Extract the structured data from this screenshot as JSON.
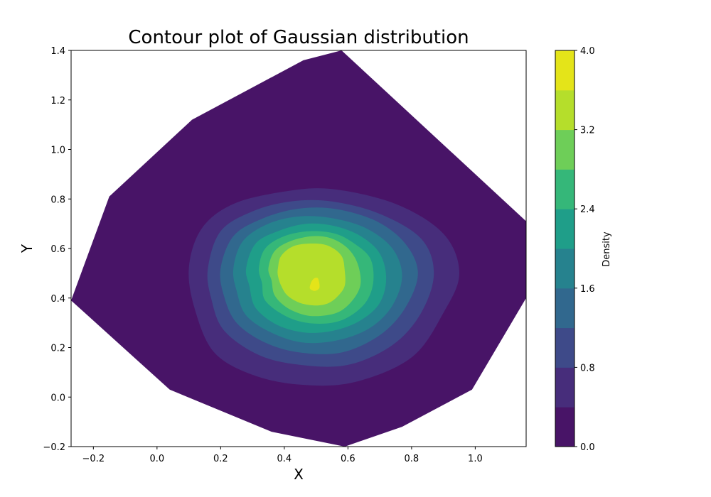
{
  "chart_data": {
    "type": "contour",
    "title": "Contour plot of Gaussian distribution",
    "xlabel": "X",
    "ylabel": "Y",
    "xlim": [
      -0.27,
      1.16
    ],
    "ylim": [
      -0.2,
      1.4
    ],
    "x_ticks": [
      -0.2,
      0.0,
      0.2,
      0.4,
      0.6,
      0.8,
      1.0
    ],
    "x_tick_labels": [
      "−0.2",
      "0.0",
      "0.2",
      "0.4",
      "0.6",
      "0.8",
      "1.0"
    ],
    "y_ticks": [
      -0.2,
      0.0,
      0.2,
      0.4,
      0.6,
      0.8,
      1.0,
      1.2,
      1.4
    ],
    "y_tick_labels": [
      "−0.2",
      "0.0",
      "0.2",
      "0.4",
      "0.6",
      "0.8",
      "1.0",
      "1.2",
      "1.4"
    ],
    "colormap": "viridis",
    "levels": [
      0.0,
      0.4,
      0.8,
      1.2,
      1.6,
      2.0,
      2.4,
      2.8,
      3.2,
      3.6,
      4.0
    ],
    "level_colors": [
      "#440154",
      "#472c7a",
      "#3b518b",
      "#2c718e",
      "#21908d",
      "#27ad81",
      "#5cc863",
      "#aadc32",
      "#fde725",
      "#fde725"
    ],
    "colorbar": {
      "label": "Density",
      "range": [
        0.0,
        4.0
      ],
      "ticks": [
        0.0,
        0.8,
        1.6,
        2.4,
        3.2,
        4.0
      ],
      "tick_labels": [
        "0.0",
        "0.8",
        "1.6",
        "2.4",
        "3.2",
        "4.0"
      ],
      "band_colors": [
        "#481467",
        "#472d7b",
        "#3e4a89",
        "#31688e",
        "#26828e",
        "#1f9e89",
        "#35b779",
        "#6ece58",
        "#b5de2b",
        "#e4e419"
      ]
    },
    "domain_hull": [
      [
        -0.27,
        0.39
      ],
      [
        -0.15,
        0.81
      ],
      [
        0.11,
        1.12
      ],
      [
        0.46,
        1.36
      ],
      [
        0.58,
        1.4
      ],
      [
        1.16,
        0.71
      ],
      [
        1.16,
        0.4
      ],
      [
        0.99,
        0.03
      ],
      [
        0.77,
        -0.12
      ],
      [
        0.59,
        -0.2
      ],
      [
        0.36,
        -0.14
      ],
      [
        0.04,
        0.03
      ]
    ],
    "peak": {
      "x": 0.49,
      "y": 0.46,
      "value": 3.7
    },
    "contours": [
      {
        "level": 0.4,
        "points": [
          [
            0.1,
            0.52
          ],
          [
            0.14,
            0.68
          ],
          [
            0.24,
            0.78
          ],
          [
            0.4,
            0.83
          ],
          [
            0.55,
            0.84
          ],
          [
            0.75,
            0.78
          ],
          [
            0.9,
            0.66
          ],
          [
            0.95,
            0.5
          ],
          [
            0.9,
            0.34
          ],
          [
            0.8,
            0.16
          ],
          [
            0.62,
            0.06
          ],
          [
            0.45,
            0.05
          ],
          [
            0.3,
            0.09
          ],
          [
            0.18,
            0.18
          ],
          [
            0.12,
            0.35
          ]
        ]
      },
      {
        "level": 0.8,
        "points": [
          [
            0.16,
            0.52
          ],
          [
            0.2,
            0.67
          ],
          [
            0.3,
            0.75
          ],
          [
            0.42,
            0.79
          ],
          [
            0.55,
            0.79
          ],
          [
            0.7,
            0.74
          ],
          [
            0.83,
            0.64
          ],
          [
            0.87,
            0.5
          ],
          [
            0.83,
            0.34
          ],
          [
            0.74,
            0.21
          ],
          [
            0.6,
            0.13
          ],
          [
            0.45,
            0.13
          ],
          [
            0.32,
            0.17
          ],
          [
            0.21,
            0.27
          ],
          [
            0.17,
            0.4
          ]
        ]
      },
      {
        "level": 1.2,
        "points": [
          [
            0.2,
            0.52
          ],
          [
            0.24,
            0.65
          ],
          [
            0.33,
            0.72
          ],
          [
            0.44,
            0.76
          ],
          [
            0.56,
            0.76
          ],
          [
            0.69,
            0.71
          ],
          [
            0.78,
            0.62
          ],
          [
            0.82,
            0.5
          ],
          [
            0.78,
            0.36
          ],
          [
            0.7,
            0.25
          ],
          [
            0.58,
            0.18
          ],
          [
            0.45,
            0.18
          ],
          [
            0.34,
            0.22
          ],
          [
            0.25,
            0.3
          ],
          [
            0.21,
            0.41
          ]
        ]
      },
      {
        "level": 1.6,
        "points": [
          [
            0.24,
            0.52
          ],
          [
            0.27,
            0.63
          ],
          [
            0.35,
            0.7
          ],
          [
            0.45,
            0.73
          ],
          [
            0.56,
            0.72
          ],
          [
            0.66,
            0.68
          ],
          [
            0.74,
            0.6
          ],
          [
            0.77,
            0.49
          ],
          [
            0.74,
            0.37
          ],
          [
            0.67,
            0.28
          ],
          [
            0.57,
            0.23
          ],
          [
            0.46,
            0.22
          ],
          [
            0.36,
            0.26
          ],
          [
            0.28,
            0.33
          ],
          [
            0.25,
            0.43
          ]
        ]
      },
      {
        "level": 2.0,
        "points": [
          [
            0.28,
            0.52
          ],
          [
            0.31,
            0.62
          ],
          [
            0.38,
            0.67
          ],
          [
            0.47,
            0.7
          ],
          [
            0.56,
            0.69
          ],
          [
            0.64,
            0.65
          ],
          [
            0.7,
            0.58
          ],
          [
            0.72,
            0.48
          ],
          [
            0.7,
            0.38
          ],
          [
            0.64,
            0.31
          ],
          [
            0.56,
            0.27
          ],
          [
            0.47,
            0.26
          ],
          [
            0.38,
            0.29
          ],
          [
            0.31,
            0.36
          ],
          [
            0.29,
            0.45
          ]
        ]
      },
      {
        "level": 2.4,
        "points": [
          [
            0.32,
            0.52
          ],
          [
            0.34,
            0.6
          ],
          [
            0.4,
            0.65
          ],
          [
            0.48,
            0.67
          ],
          [
            0.56,
            0.66
          ],
          [
            0.62,
            0.62
          ],
          [
            0.67,
            0.56
          ],
          [
            0.68,
            0.47
          ],
          [
            0.66,
            0.39
          ],
          [
            0.61,
            0.33
          ],
          [
            0.55,
            0.3
          ],
          [
            0.47,
            0.3
          ],
          [
            0.4,
            0.33
          ],
          [
            0.34,
            0.39
          ],
          [
            0.33,
            0.46
          ]
        ]
      },
      {
        "level": 2.8,
        "points": [
          [
            0.35,
            0.52
          ],
          [
            0.37,
            0.59
          ],
          [
            0.42,
            0.63
          ],
          [
            0.49,
            0.65
          ],
          [
            0.55,
            0.64
          ],
          [
            0.6,
            0.6
          ],
          [
            0.63,
            0.54
          ],
          [
            0.64,
            0.46
          ],
          [
            0.62,
            0.4
          ],
          [
            0.58,
            0.35
          ],
          [
            0.53,
            0.33
          ],
          [
            0.47,
            0.33
          ],
          [
            0.41,
            0.36
          ],
          [
            0.37,
            0.41
          ],
          [
            0.36,
            0.47
          ]
        ]
      },
      {
        "level": 3.2,
        "points": [
          [
            0.38,
            0.52
          ],
          [
            0.39,
            0.57
          ],
          [
            0.43,
            0.61
          ],
          [
            0.49,
            0.62
          ],
          [
            0.54,
            0.61
          ],
          [
            0.58,
            0.57
          ],
          [
            0.59,
            0.51
          ],
          [
            0.59,
            0.45
          ],
          [
            0.57,
            0.41
          ],
          [
            0.54,
            0.38
          ],
          [
            0.5,
            0.37
          ],
          [
            0.45,
            0.38
          ],
          [
            0.41,
            0.41
          ],
          [
            0.39,
            0.45
          ],
          [
            0.38,
            0.49
          ]
        ]
      },
      {
        "level": 3.6,
        "points": [
          [
            0.48,
            0.44
          ],
          [
            0.485,
            0.465
          ],
          [
            0.495,
            0.48
          ],
          [
            0.505,
            0.48
          ],
          [
            0.51,
            0.46
          ],
          [
            0.51,
            0.44
          ],
          [
            0.5,
            0.43
          ],
          [
            0.49,
            0.43
          ]
        ]
      }
    ]
  }
}
